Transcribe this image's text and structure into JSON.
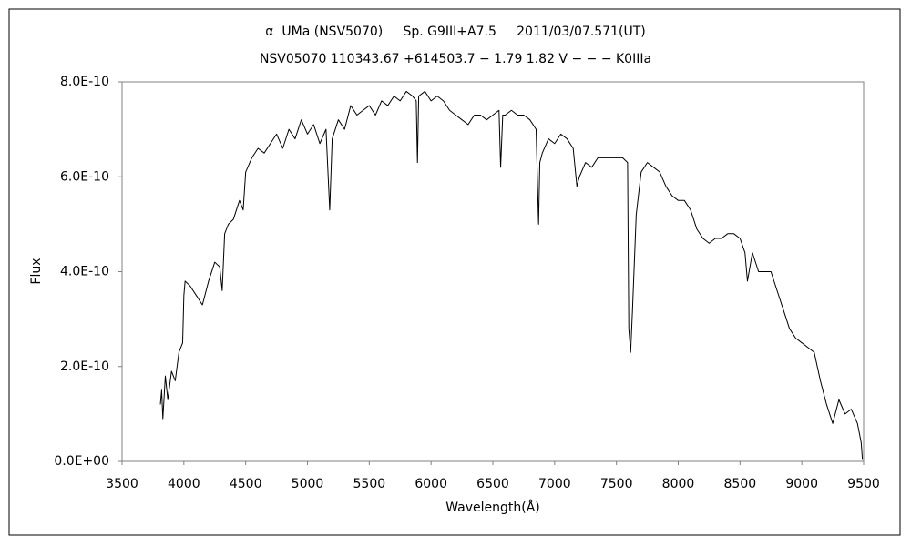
{
  "chart_data": {
    "type": "line",
    "title": "α  UMa (NSV5070)     Sp. G9III+A7.5     2011/03/07.571(UT)",
    "subtitle": "NSV05070 110343.67 +614503.7 − 1.79 1.82 V − − − K0IIIa",
    "x_label": "Wavelength(Å)",
    "y_label": "Flux",
    "color": "#000000",
    "xlim": [
      3500,
      9500
    ],
    "xticks": [
      3500,
      4000,
      4500,
      5000,
      5500,
      6000,
      6500,
      7000,
      7500,
      8000,
      8500,
      9000,
      9500
    ],
    "ylim": [
      0,
      8e-10
    ],
    "yticks": [
      {
        "value": 0,
        "label": "0.0E+00"
      },
      {
        "value": 2e-10,
        "label": "2.0E-10"
      },
      {
        "value": 4e-10,
        "label": "4.0E-10"
      },
      {
        "value": 6e-10,
        "label": "6.0E-10"
      },
      {
        "value": 8e-10,
        "label": "8.0E-10"
      }
    ],
    "grid": false,
    "x": [
      3810,
      3820,
      3830,
      3850,
      3870,
      3900,
      3930,
      3960,
      3990,
      4000,
      4010,
      4050,
      4100,
      4150,
      4200,
      4250,
      4290,
      4310,
      4330,
      4360,
      4400,
      4450,
      4480,
      4500,
      4550,
      4600,
      4650,
      4700,
      4750,
      4800,
      4850,
      4900,
      4950,
      5000,
      5050,
      5100,
      5150,
      5180,
      5200,
      5250,
      5300,
      5350,
      5400,
      5450,
      5500,
      5550,
      5600,
      5650,
      5700,
      5750,
      5800,
      5850,
      5880,
      5890,
      5900,
      5950,
      6000,
      6050,
      6100,
      6150,
      6200,
      6250,
      6300,
      6350,
      6400,
      6450,
      6500,
      6550,
      6563,
      6580,
      6600,
      6650,
      6700,
      6750,
      6800,
      6850,
      6870,
      6880,
      6900,
      6950,
      7000,
      7050,
      7100,
      7150,
      7180,
      7200,
      7250,
      7300,
      7350,
      7400,
      7450,
      7500,
      7550,
      7590,
      7600,
      7615,
      7630,
      7660,
      7700,
      7750,
      7800,
      7850,
      7900,
      7950,
      8000,
      8050,
      8100,
      8150,
      8200,
      8250,
      8300,
      8350,
      8400,
      8450,
      8500,
      8540,
      8560,
      8600,
      8650,
      8700,
      8750,
      8800,
      8850,
      8900,
      8950,
      9000,
      9050,
      9100,
      9150,
      9200,
      9250,
      9300,
      9350,
      9400,
      9450,
      9480,
      9490
    ],
    "values": [
      1.2e-10,
      1.5e-10,
      9e-11,
      1.8e-10,
      1.3e-10,
      1.9e-10,
      1.7e-10,
      2.3e-10,
      2.5e-10,
      3.5e-10,
      3.8e-10,
      3.7e-10,
      3.5e-10,
      3.3e-10,
      3.8e-10,
      4.2e-10,
      4.1e-10,
      3.6e-10,
      4.8e-10,
      5e-10,
      5.1e-10,
      5.5e-10,
      5.3e-10,
      6.1e-10,
      6.4e-10,
      6.6e-10,
      6.5e-10,
      6.7e-10,
      6.9e-10,
      6.6e-10,
      7e-10,
      6.8e-10,
      7.2e-10,
      6.9e-10,
      7.1e-10,
      6.7e-10,
      7e-10,
      5.3e-10,
      6.8e-10,
      7.2e-10,
      7e-10,
      7.5e-10,
      7.3e-10,
      7.4e-10,
      7.5e-10,
      7.3e-10,
      7.6e-10,
      7.5e-10,
      7.7e-10,
      7.6e-10,
      7.8e-10,
      7.7e-10,
      7.6e-10,
      6.3e-10,
      7.7e-10,
      7.8e-10,
      7.6e-10,
      7.7e-10,
      7.6e-10,
      7.4e-10,
      7.3e-10,
      7.2e-10,
      7.1e-10,
      7.3e-10,
      7.3e-10,
      7.2e-10,
      7.3e-10,
      7.4e-10,
      6.2e-10,
      7.3e-10,
      7.3e-10,
      7.4e-10,
      7.3e-10,
      7.3e-10,
      7.2e-10,
      7e-10,
      5e-10,
      6.3e-10,
      6.5e-10,
      6.8e-10,
      6.7e-10,
      6.9e-10,
      6.8e-10,
      6.6e-10,
      5.8e-10,
      6e-10,
      6.3e-10,
      6.2e-10,
      6.4e-10,
      6.4e-10,
      6.4e-10,
      6.4e-10,
      6.4e-10,
      6.3e-10,
      2.8e-10,
      2.3e-10,
      3.2e-10,
      5.2e-10,
      6.1e-10,
      6.3e-10,
      6.2e-10,
      6.1e-10,
      5.8e-10,
      5.6e-10,
      5.5e-10,
      5.5e-10,
      5.3e-10,
      4.9e-10,
      4.7e-10,
      4.6e-10,
      4.7e-10,
      4.7e-10,
      4.8e-10,
      4.8e-10,
      4.7e-10,
      4.4e-10,
      3.8e-10,
      4.4e-10,
      4e-10,
      4e-10,
      4e-10,
      3.6e-10,
      3.2e-10,
      2.8e-10,
      2.6e-10,
      2.5e-10,
      2.4e-10,
      2.3e-10,
      1.7e-10,
      1.2e-10,
      8e-11,
      1.3e-10,
      1e-10,
      1.1e-10,
      8e-11,
      4e-11,
      5e-12
    ]
  }
}
